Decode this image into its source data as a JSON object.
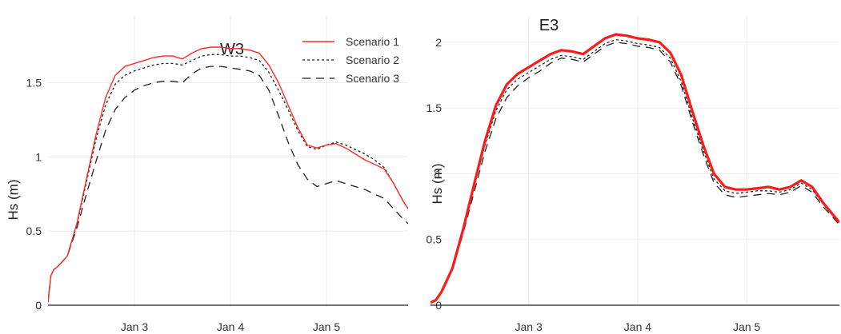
{
  "chart_data": [
    {
      "type": "line",
      "title": "W3",
      "xlabel": "",
      "ylabel": "Hs (m)",
      "x_ticks": [
        "Jan 3",
        "Jan 4",
        "Jan 5"
      ],
      "xlim": [
        2.1,
        5.85
      ],
      "y_ticks": [
        "0",
        "0.5",
        "1",
        "1.5"
      ],
      "ylim": [
        0,
        1.95
      ],
      "grid": true,
      "legend_position": "top-right",
      "x": [
        2.1,
        2.13,
        2.16,
        2.2,
        2.3,
        2.4,
        2.5,
        2.6,
        2.7,
        2.8,
        2.9,
        3.0,
        3.1,
        3.2,
        3.3,
        3.4,
        3.5,
        3.6,
        3.7,
        3.8,
        3.9,
        4.0,
        4.1,
        4.2,
        4.3,
        4.4,
        4.5,
        4.6,
        4.7,
        4.8,
        4.9,
        5.0,
        5.1,
        5.2,
        5.3,
        5.4,
        5.5,
        5.6,
        5.7,
        5.8,
        5.85
      ],
      "series": [
        {
          "name": "Scenario 1",
          "color": "#ff2a2a",
          "dash": "solid",
          "values": [
            0.02,
            0.2,
            0.24,
            0.26,
            0.33,
            0.55,
            0.85,
            1.15,
            1.4,
            1.55,
            1.61,
            1.63,
            1.65,
            1.67,
            1.68,
            1.68,
            1.66,
            1.7,
            1.73,
            1.74,
            1.74,
            1.73,
            1.73,
            1.72,
            1.7,
            1.62,
            1.5,
            1.35,
            1.2,
            1.08,
            1.06,
            1.08,
            1.09,
            1.06,
            1.02,
            0.98,
            0.95,
            0.92,
            0.82,
            0.7,
            0.65
          ]
        },
        {
          "name": "Scenario 2",
          "color": "#222222",
          "dash": "dotted",
          "values": [
            0.02,
            0.2,
            0.24,
            0.26,
            0.33,
            0.54,
            0.83,
            1.12,
            1.35,
            1.49,
            1.55,
            1.58,
            1.6,
            1.62,
            1.63,
            1.63,
            1.62,
            1.65,
            1.68,
            1.69,
            1.69,
            1.68,
            1.68,
            1.67,
            1.65,
            1.57,
            1.45,
            1.32,
            1.18,
            1.07,
            1.05,
            1.08,
            1.1,
            1.08,
            1.05,
            1.02,
            0.98,
            0.93,
            0.82,
            0.7,
            0.65
          ]
        },
        {
          "name": "Scenario 3",
          "color": "#222222",
          "dash": "dashed",
          "values": [
            0.02,
            0.2,
            0.24,
            0.26,
            0.33,
            0.52,
            0.75,
            0.97,
            1.18,
            1.32,
            1.4,
            1.45,
            1.48,
            1.5,
            1.51,
            1.51,
            1.5,
            1.56,
            1.6,
            1.61,
            1.61,
            1.6,
            1.59,
            1.58,
            1.55,
            1.45,
            1.28,
            1.1,
            0.95,
            0.85,
            0.8,
            0.82,
            0.84,
            0.82,
            0.8,
            0.78,
            0.75,
            0.72,
            0.65,
            0.58,
            0.55
          ]
        }
      ]
    },
    {
      "type": "line",
      "title": "E3",
      "xlabel": "",
      "ylabel": "Hs (m)",
      "x_ticks": [
        "Jan 3",
        "Jan 4",
        "Jan 5"
      ],
      "xlim": [
        2.1,
        5.85
      ],
      "y_ticks": [
        "0",
        "0.5",
        "1",
        "1.5",
        "2"
      ],
      "ylim": [
        0,
        2.2
      ],
      "grid": true,
      "x": [
        2.1,
        2.15,
        2.2,
        2.3,
        2.4,
        2.5,
        2.6,
        2.7,
        2.8,
        2.9,
        3.0,
        3.1,
        3.2,
        3.3,
        3.4,
        3.5,
        3.6,
        3.7,
        3.8,
        3.9,
        4.0,
        4.1,
        4.2,
        4.3,
        4.4,
        4.5,
        4.6,
        4.7,
        4.8,
        4.9,
        5.0,
        5.1,
        5.2,
        5.3,
        5.4,
        5.5,
        5.6,
        5.7,
        5.8,
        5.85
      ],
      "series": [
        {
          "name": "Scenario 1",
          "color": "#ff1a1a",
          "dash": "solid",
          "values": [
            0.02,
            0.04,
            0.1,
            0.28,
            0.58,
            0.92,
            1.25,
            1.52,
            1.68,
            1.76,
            1.81,
            1.86,
            1.91,
            1.94,
            1.93,
            1.91,
            1.97,
            2.03,
            2.06,
            2.05,
            2.03,
            2.02,
            2.0,
            1.92,
            1.75,
            1.48,
            1.22,
            1.0,
            0.9,
            0.88,
            0.88,
            0.89,
            0.9,
            0.88,
            0.9,
            0.95,
            0.9,
            0.78,
            0.68,
            0.63
          ]
        },
        {
          "name": "Scenario 2",
          "color": "#222222",
          "dash": "dotted",
          "values": [
            0.02,
            0.04,
            0.1,
            0.28,
            0.57,
            0.9,
            1.22,
            1.48,
            1.64,
            1.72,
            1.77,
            1.82,
            1.87,
            1.9,
            1.89,
            1.87,
            1.93,
            1.99,
            2.02,
            2.01,
            1.99,
            1.98,
            1.96,
            1.88,
            1.7,
            1.43,
            1.18,
            0.96,
            0.87,
            0.85,
            0.86,
            0.87,
            0.87,
            0.86,
            0.88,
            0.93,
            0.88,
            0.77,
            0.67,
            0.62
          ]
        },
        {
          "name": "Scenario 3",
          "color": "#222222",
          "dash": "dashed",
          "values": [
            0.02,
            0.04,
            0.1,
            0.27,
            0.55,
            0.86,
            1.17,
            1.42,
            1.58,
            1.67,
            1.73,
            1.78,
            1.84,
            1.88,
            1.87,
            1.85,
            1.91,
            1.97,
            2.0,
            1.99,
            1.97,
            1.96,
            1.94,
            1.85,
            1.67,
            1.4,
            1.15,
            0.93,
            0.84,
            0.82,
            0.83,
            0.84,
            0.85,
            0.84,
            0.86,
            0.91,
            0.86,
            0.75,
            0.66,
            0.61
          ]
        }
      ]
    }
  ]
}
